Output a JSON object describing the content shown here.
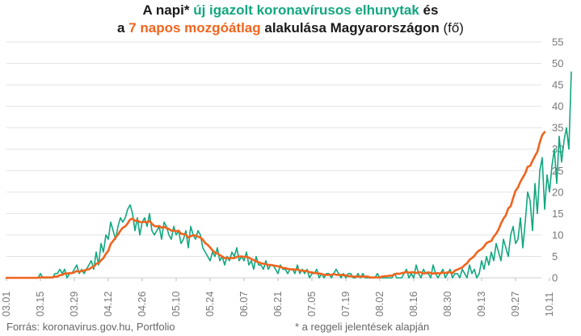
{
  "title": {
    "line1_prefix": "A napi* ",
    "line1_highlight": "új igazolt koronavírusos elhunytak",
    "line1_suffix": " és",
    "line2_prefix": "a ",
    "line2_highlight": "7 napos mozgóátlag",
    "line2_suffix": " alakulása Magyarországon",
    "line2_unit": " (fő)"
  },
  "footer": {
    "source": "Forrás: koronavirus.gov.hu, Portfolio",
    "note": "* a reggeli jelentések alapján"
  },
  "colors": {
    "daily": "#12a77f",
    "average": "#f0641e",
    "grid": "#e3e3e3",
    "axis_text": "#777777"
  },
  "chart_data": {
    "type": "line",
    "title": "A napi* új igazolt koronavírusos elhunytak és a 7 napos mozgóátlag alakulása Magyarországon (fő)",
    "x_start": "2020-03-01",
    "ylim": [
      0,
      55
    ],
    "yticks": [
      0,
      5,
      10,
      15,
      20,
      25,
      30,
      35,
      40,
      45,
      50,
      55
    ],
    "y_axis_position": "right",
    "xticks": [
      "03.01",
      "03.15",
      "03.29",
      "04.12",
      "04.26",
      "05.10",
      "05.24",
      "06.07",
      "06.21",
      "07.05",
      "07.19",
      "08.02",
      "08.16",
      "08.30",
      "09.13",
      "09.27",
      "10.11"
    ],
    "grid": "horizontal",
    "series": [
      {
        "name": "új igazolt koronavírusos elhunytak",
        "color": "#12a77f",
        "values": [
          0,
          0,
          0,
          0,
          0,
          0,
          0,
          0,
          0,
          0,
          0,
          0,
          0,
          0,
          1,
          0,
          0,
          0,
          0,
          0,
          1,
          1,
          2,
          1,
          2,
          0,
          1,
          1,
          2,
          3,
          1,
          2,
          1,
          2,
          3,
          4,
          2,
          6,
          3,
          8,
          6,
          10,
          9,
          13,
          11,
          9,
          12,
          14,
          13,
          14,
          16,
          17,
          15,
          11,
          14,
          10,
          13,
          14,
          12,
          15,
          11,
          10,
          11,
          12,
          9,
          13,
          12,
          10,
          9,
          12,
          10,
          11,
          8,
          9,
          11,
          7,
          12,
          10,
          9,
          11,
          10,
          7,
          6,
          5,
          4,
          6,
          5,
          7,
          4,
          5,
          3,
          5,
          4,
          6,
          5,
          7,
          4,
          5,
          4,
          6,
          3,
          4,
          2,
          5,
          3,
          3,
          2,
          4,
          2,
          3,
          3,
          2,
          1,
          3,
          2,
          2,
          1,
          2,
          2,
          1,
          3,
          1,
          2,
          1,
          2,
          0,
          1,
          1,
          2,
          0,
          1,
          0,
          1,
          1,
          0,
          1,
          2,
          1,
          0,
          1,
          0,
          1,
          1,
          0,
          0,
          1,
          0,
          1,
          0,
          0,
          0,
          0,
          0,
          1,
          0,
          0,
          0,
          0,
          0,
          0,
          1,
          0,
          0,
          0,
          1,
          2,
          0,
          1,
          0,
          3,
          1,
          0,
          2,
          1,
          1,
          0,
          3,
          1,
          0,
          1,
          2,
          0,
          1,
          2,
          0,
          1,
          1,
          0,
          2,
          1,
          0,
          3,
          1,
          2,
          0,
          1,
          4,
          2,
          5,
          3,
          6,
          4,
          8,
          6,
          4,
          9,
          7,
          5,
          10,
          12,
          8,
          9,
          14,
          7,
          13,
          20,
          18,
          11,
          22,
          15,
          25,
          28,
          16,
          24,
          20,
          26,
          30,
          22,
          33,
          27,
          32,
          35,
          30,
          48
        ]
      },
      {
        "name": "7 napos mozgóátlag",
        "color": "#f0641e",
        "values": [
          0,
          0,
          0,
          0,
          0,
          0,
          0,
          0,
          0,
          0,
          0,
          0,
          0,
          0,
          0.1,
          0.1,
          0.1,
          0.1,
          0.1,
          0.1,
          0.3,
          0.3,
          0.6,
          0.7,
          1,
          1,
          1.1,
          1.1,
          1.3,
          1.6,
          1.4,
          1.6,
          1.7,
          1.9,
          2,
          2.4,
          2.6,
          3.3,
          3.4,
          4.1,
          4.6,
          5.6,
          6.3,
          7.9,
          8.6,
          9.4,
          10.1,
          11,
          11.7,
          12,
          12.7,
          13.6,
          13.8,
          13.3,
          13.4,
          13,
          13,
          13.1,
          12.9,
          13.3,
          12.6,
          12.1,
          12,
          12.1,
          11.7,
          11.9,
          11.6,
          11.4,
          11,
          11,
          10.9,
          11,
          10.3,
          10.2,
          10.1,
          9.4,
          9.7,
          9.9,
          9.9,
          9.6,
          9.4,
          8.9,
          8.1,
          7.7,
          7.1,
          6.4,
          5.9,
          5.7,
          5.3,
          5,
          4.6,
          4.6,
          4.6,
          4.6,
          4.6,
          4.9,
          5,
          5,
          4.9,
          4.9,
          4.7,
          4.4,
          4.1,
          3.9,
          3.6,
          3.4,
          3.3,
          3.2,
          3,
          3,
          2.9,
          2.8,
          2.7,
          2.6,
          2.3,
          2.3,
          2.1,
          2,
          2,
          1.9,
          2,
          1.7,
          1.7,
          1.6,
          1.6,
          1.3,
          1.3,
          1.1,
          1.1,
          1,
          0.9,
          0.7,
          0.7,
          0.7,
          0.7,
          0.9,
          0.7,
          0.7,
          0.7,
          0.6,
          0.6,
          0.4,
          0.4,
          0.3,
          0.3,
          0.3,
          0.3,
          0.3,
          0.3,
          0.3,
          0.1,
          0.1,
          0.1,
          0.1,
          0.1,
          0.3,
          0.4,
          0.4,
          0.5,
          0.5,
          0.8,
          1,
          0.9,
          1.1,
          1.2,
          1.4,
          1.2,
          1.3,
          1.3,
          1.1,
          1.3,
          1.3,
          1,
          1.1,
          1.3,
          1.1,
          1,
          1.1,
          1.1,
          1,
          1.3,
          1.1,
          1.3,
          1.3,
          1.1,
          1.7,
          1.9,
          2.2,
          2.4,
          3,
          3.4,
          4.2,
          4.6,
          5.1,
          5.9,
          6.4,
          6.7,
          7.3,
          8.1,
          8.4,
          8.6,
          9.6,
          10.3,
          11.3,
          12.7,
          13.8,
          14.6,
          16.2,
          16.7,
          18.6,
          20.3,
          21.1,
          22.4,
          23.4,
          24.4,
          25.9,
          26.1,
          27.3,
          28.4,
          29.4,
          31.6,
          33.3,
          34
        ]
      }
    ]
  }
}
